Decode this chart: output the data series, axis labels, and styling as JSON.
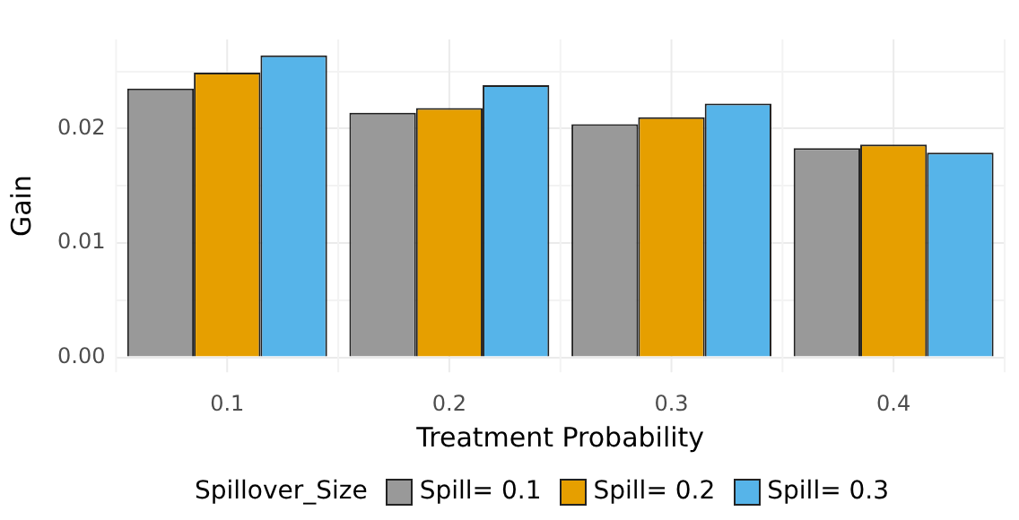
{
  "chart_data": {
    "type": "bar",
    "xlabel": "Treatment Probability",
    "ylabel": "Gain",
    "legend_title": "Spillover_Size",
    "categories": [
      "0.1",
      "0.2",
      "0.3",
      "0.4"
    ],
    "series": [
      {
        "name": "Spill= 0.1",
        "color": "#999999",
        "values": [
          0.0235,
          0.0214,
          0.0204,
          0.0183
        ]
      },
      {
        "name": "Spill= 0.2",
        "color": "#e69f00",
        "values": [
          0.0249,
          0.0218,
          0.021,
          0.0186
        ]
      },
      {
        "name": "Spill= 0.3",
        "color": "#56b4e9",
        "values": [
          0.0264,
          0.0238,
          0.0222,
          0.0179
        ]
      }
    ],
    "ylim": [
      -0.0013,
      0.0278
    ],
    "yticks": [
      {
        "value": 0,
        "label": "0.00"
      },
      {
        "value": 0.005,
        "label": null
      },
      {
        "value": 0.01,
        "label": "0.01"
      },
      {
        "value": 0.015,
        "label": null
      },
      {
        "value": 0.02,
        "label": "0.02"
      },
      {
        "value": 0.025,
        "label": null
      }
    ],
    "grid": true,
    "legend": "bottom"
  }
}
